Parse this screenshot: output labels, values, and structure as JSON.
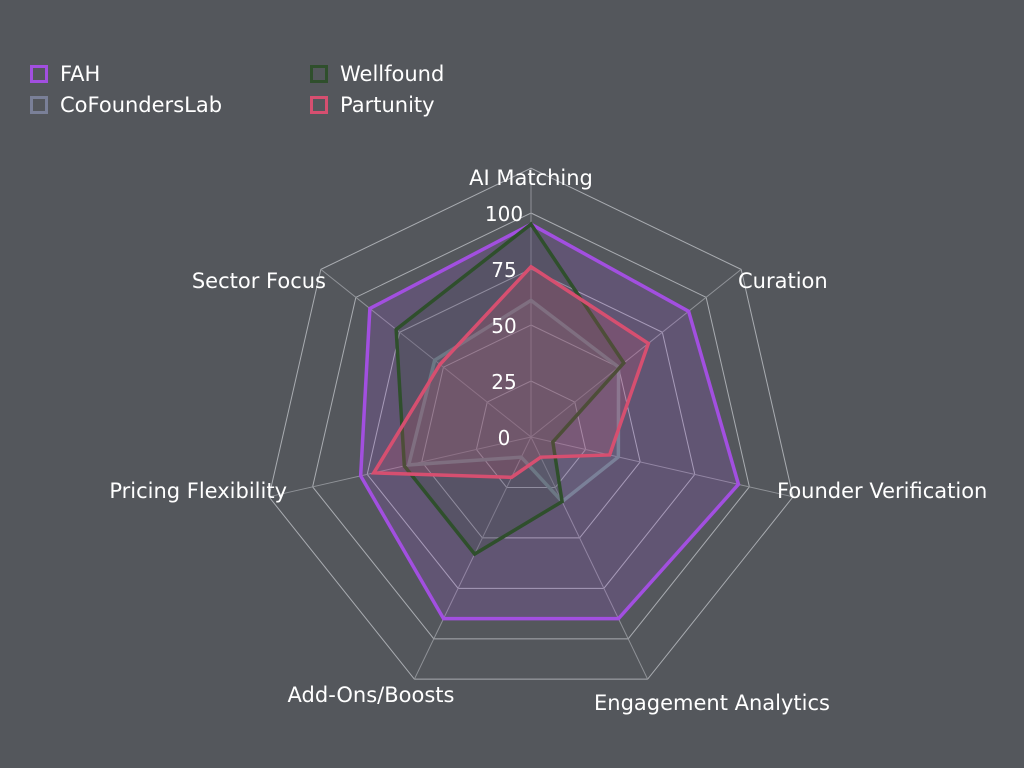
{
  "chart_data": {
    "type": "radar",
    "categories": [
      "AI Matching",
      "Curation",
      "Founder Verification",
      "Engagement Analytics",
      "Add-Ons/Boosts",
      "Pricing Flexibility",
      "Sector Focus"
    ],
    "ticks": [
      "0",
      "25",
      "50",
      "75",
      "100"
    ],
    "rlim": [
      0,
      100
    ],
    "grid": true,
    "legend_position": "top-left",
    "series": [
      {
        "name": "FAH",
        "values": [
          95,
          90,
          95,
          90,
          90,
          78,
          92
        ],
        "color": "#a24fe0"
      },
      {
        "name": "CoFoundersLab",
        "values": [
          61,
          50,
          40,
          32,
          10,
          56,
          55
        ],
        "color": "#7a8098"
      },
      {
        "name": "Wellfound",
        "values": [
          95,
          53,
          10,
          32,
          58,
          58,
          77
        ],
        "color": "#2f4f2c"
      },
      {
        "name": "Partunity",
        "values": [
          76,
          67,
          36,
          10,
          20,
          72,
          52
        ],
        "color": "#d64f70"
      }
    ]
  }
}
